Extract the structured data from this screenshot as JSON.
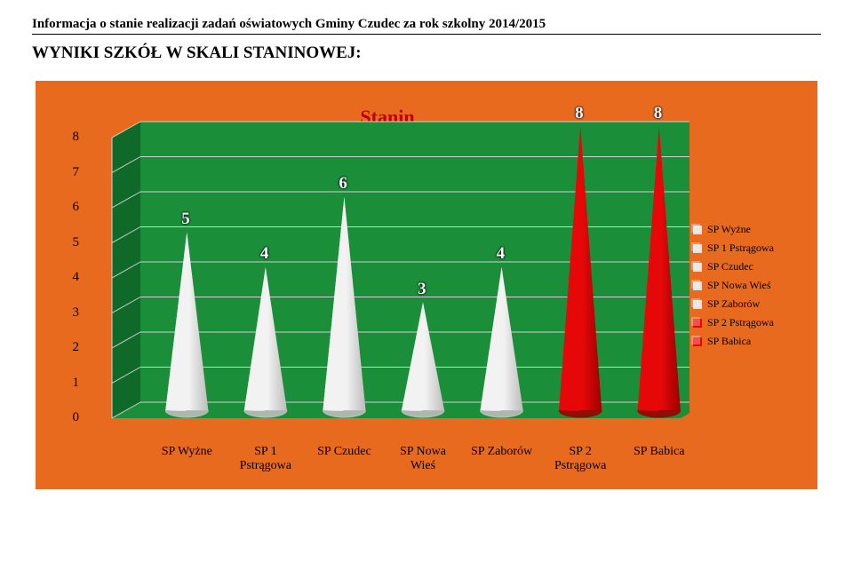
{
  "header_text": "Informacja o stanie realizacji zadań oświatowych Gminy Czudec za rok szkolny 2014/2015",
  "heading": "WYNIKI SZKÓŁ W SKALI STANINOWEJ:",
  "chart": {
    "title": "Stanin",
    "type": "3d-cone-bar",
    "background": "#e86a1f",
    "plot_background": "#1b8e3a",
    "plot_side": "#0f6a2a",
    "plot_top": "#1b8e3a",
    "grid_color": "#d0d0d0",
    "ylim": [
      0,
      8
    ],
    "ytick_step": 1,
    "perspective_depth": 32,
    "categories": [
      "SP Wyżne",
      "SP 1 Pstrągowa",
      "SP Czudec",
      "SP Nowa Wieś",
      "SP Zaborów",
      "SP 2 Pstrągowa",
      "SP Babica"
    ],
    "x_labels": [
      "SP Wyżne",
      "SP 1\nPstrągowa",
      "SP Czudec",
      "SP Nowa\nWieś",
      "SP Zaborów",
      "SP 2\nPstrągowa",
      "SP Babica"
    ],
    "values": [
      5,
      4,
      6,
      3,
      4,
      8,
      8
    ],
    "colors": [
      "#f2f2f2",
      "#f2f2f2",
      "#f2f2f2",
      "#f2f2f2",
      "#f2f2f2",
      "#e60808",
      "#e60808"
    ],
    "colors_shadow": [
      "#bdbdbd",
      "#bdbdbd",
      "#bdbdbd",
      "#bdbdbd",
      "#bdbdbd",
      "#9e0000",
      "#9e0000"
    ],
    "legend_colors": [
      "#e0e0e0",
      "#e0e0e0",
      "#e0e0e0",
      "#e0e0e0",
      "#e0e0e0",
      "#e60808",
      "#e60808"
    ]
  }
}
